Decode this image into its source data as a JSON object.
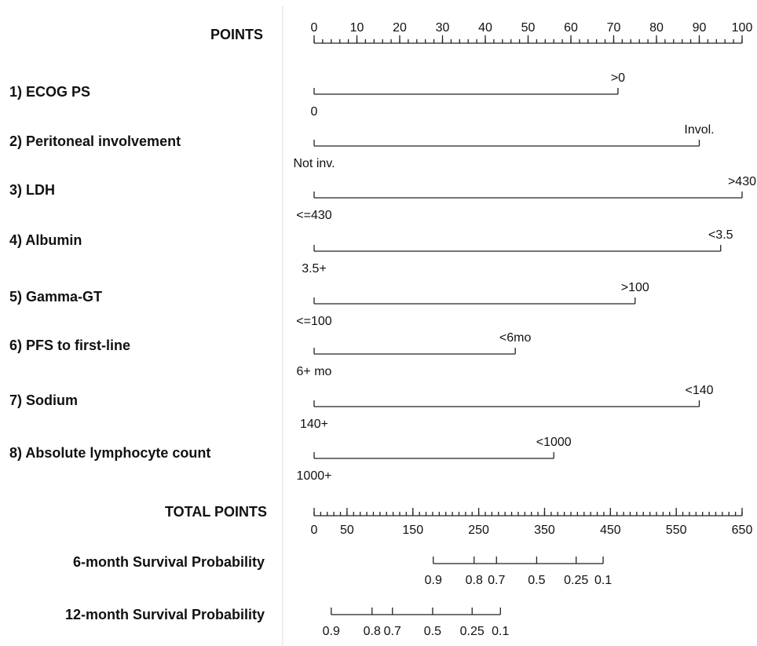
{
  "chart_data": {
    "type": "nomogram",
    "points_axis": {
      "label": "POINTS",
      "xlim": [
        0,
        100
      ],
      "xticks": [
        0,
        10,
        20,
        30,
        40,
        50,
        60,
        70,
        80,
        90,
        100
      ],
      "minor_tick_step": 2
    },
    "variables": [
      {
        "name": "1) ECOG PS",
        "levels": [
          {
            "label": "0",
            "points": 0
          },
          {
            "label": ">0",
            "points": 71
          }
        ]
      },
      {
        "name": "2) Peritoneal involvement",
        "levels": [
          {
            "label": "Not inv.",
            "points": 0
          },
          {
            "label": "Invol.",
            "points": 90
          }
        ]
      },
      {
        "name": "3) LDH",
        "levels": [
          {
            "label": "<=430",
            "points": 0
          },
          {
            "label": ">430",
            "points": 100
          }
        ]
      },
      {
        "name": "4) Albumin",
        "levels": [
          {
            "label": "3.5+",
            "points": 0
          },
          {
            "label": "<3.5",
            "points": 95
          }
        ]
      },
      {
        "name": "5) Gamma-GT",
        "levels": [
          {
            "label": "<=100",
            "points": 0
          },
          {
            "label": ">100",
            "points": 75
          }
        ]
      },
      {
        "name": "6) PFS to first-line",
        "levels": [
          {
            "label": "6+ mo",
            "points": 0
          },
          {
            "label": "<6mo",
            "points": 47
          }
        ]
      },
      {
        "name": "7) Sodium",
        "levels": [
          {
            "label": "140+",
            "points": 0
          },
          {
            "label": "<140",
            "points": 90
          }
        ]
      },
      {
        "name": "8) Absolute lymphocyte count",
        "levels": [
          {
            "label": "1000+",
            "points": 0
          },
          {
            "label": "<1000",
            "points": 56
          }
        ]
      }
    ],
    "total_points_axis": {
      "label": "TOTAL POINTS",
      "xlim": [
        0,
        650
      ],
      "xticks": [
        0,
        50,
        150,
        250,
        350,
        450,
        550,
        650
      ],
      "minor_tick_step": 10
    },
    "probability_axes": [
      {
        "label": "6-month Survival Probability",
        "ticks": [
          {
            "probability": 0.9,
            "total_points": 181
          },
          {
            "probability": 0.8,
            "total_points": 243
          },
          {
            "probability": 0.7,
            "total_points": 277
          },
          {
            "probability": 0.5,
            "total_points": 338
          },
          {
            "probability": 0.25,
            "total_points": 398
          },
          {
            "probability": 0.1,
            "total_points": 439
          }
        ]
      },
      {
        "label": "12-month Survival Probability",
        "ticks": [
          {
            "probability": 0.9,
            "total_points": 26
          },
          {
            "probability": 0.8,
            "total_points": 88
          },
          {
            "probability": 0.7,
            "total_points": 119
          },
          {
            "probability": 0.5,
            "total_points": 180
          },
          {
            "probability": 0.25,
            "total_points": 240
          },
          {
            "probability": 0.1,
            "total_points": 283
          }
        ]
      }
    ]
  }
}
